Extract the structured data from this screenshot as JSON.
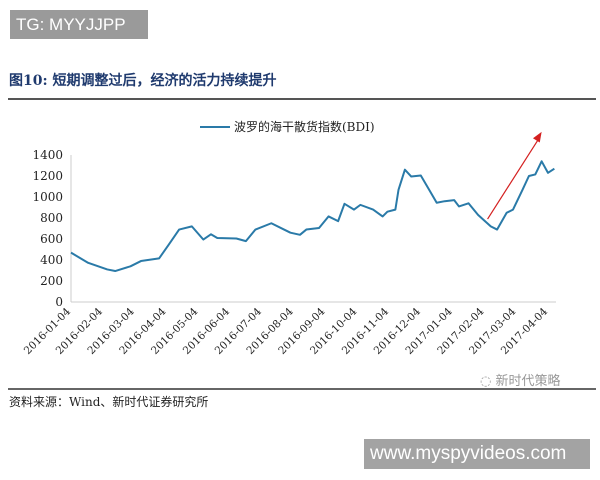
{
  "watermark_top": "TG: MYYJJPP",
  "figure_title": "图10:  短期调整过后，经济的活力持续提升",
  "source": "资料来源：Wind、新时代证券研究所",
  "wechat_mark": "新时代策略",
  "watermark_bottom": "www.myspyvideos.com",
  "chart_data": {
    "type": "line",
    "title": "",
    "legend": [
      "波罗的海干散货指数(BDI)"
    ],
    "legend_position": "top-center",
    "xlabel": "",
    "ylabel": "",
    "ylim": [
      0,
      1400
    ],
    "yticks": [
      0,
      200,
      400,
      600,
      800,
      1000,
      1200,
      1400
    ],
    "xtick_labels": [
      "2016-01-04",
      "2016-02-04",
      "2016-03-04",
      "2016-04-04",
      "2016-05-04",
      "2016-06-04",
      "2016-07-04",
      "2016-08-04",
      "2016-09-04",
      "2016-10-04",
      "2016-11-04",
      "2016-12-04",
      "2017-01-04",
      "2017-02-04",
      "2017-03-04",
      "2017-04-04"
    ],
    "x_unit": "months since 2016-01-04",
    "color": "#2a7aa8",
    "series": [
      {
        "name": "波罗的海干散货指数(BDI)",
        "x": [
          0,
          0.54,
          1.14,
          1.39,
          1.87,
          2.2,
          2.77,
          3.07,
          3.4,
          3.8,
          4.16,
          4.4,
          4.6,
          5.2,
          5.5,
          5.8,
          6.3,
          6.7,
          6.9,
          7.2,
          7.4,
          7.8,
          8.1,
          8.4,
          8.6,
          8.9,
          9.1,
          9.5,
          9.8,
          9.95,
          10.2,
          10.3,
          10.5,
          10.7,
          11.0,
          11.26,
          11.5,
          11.75,
          12.05,
          12.2,
          12.5,
          12.8,
          13.2,
          13.4,
          13.7,
          13.9,
          14.2,
          14.4,
          14.6,
          14.8,
          15.0,
          15.2
        ],
        "values": [
          470,
          373,
          310,
          295,
          340,
          390,
          415,
          545,
          690,
          720,
          595,
          645,
          610,
          605,
          580,
          690,
          750,
          690,
          660,
          640,
          690,
          705,
          815,
          770,
          935,
          880,
          925,
          880,
          815,
          860,
          880,
          1070,
          1260,
          1195,
          1205,
          1070,
          945,
          960,
          970,
          910,
          940,
          830,
          720,
          690,
          850,
          880,
          1070,
          1200,
          1215,
          1340,
          1230,
          1270
        ]
      }
    ],
    "annotations": [
      {
        "type": "arrow",
        "color": "#d42020",
        "from": [
          13.1,
          790
        ],
        "to": [
          14.8,
          1620
        ]
      }
    ]
  }
}
